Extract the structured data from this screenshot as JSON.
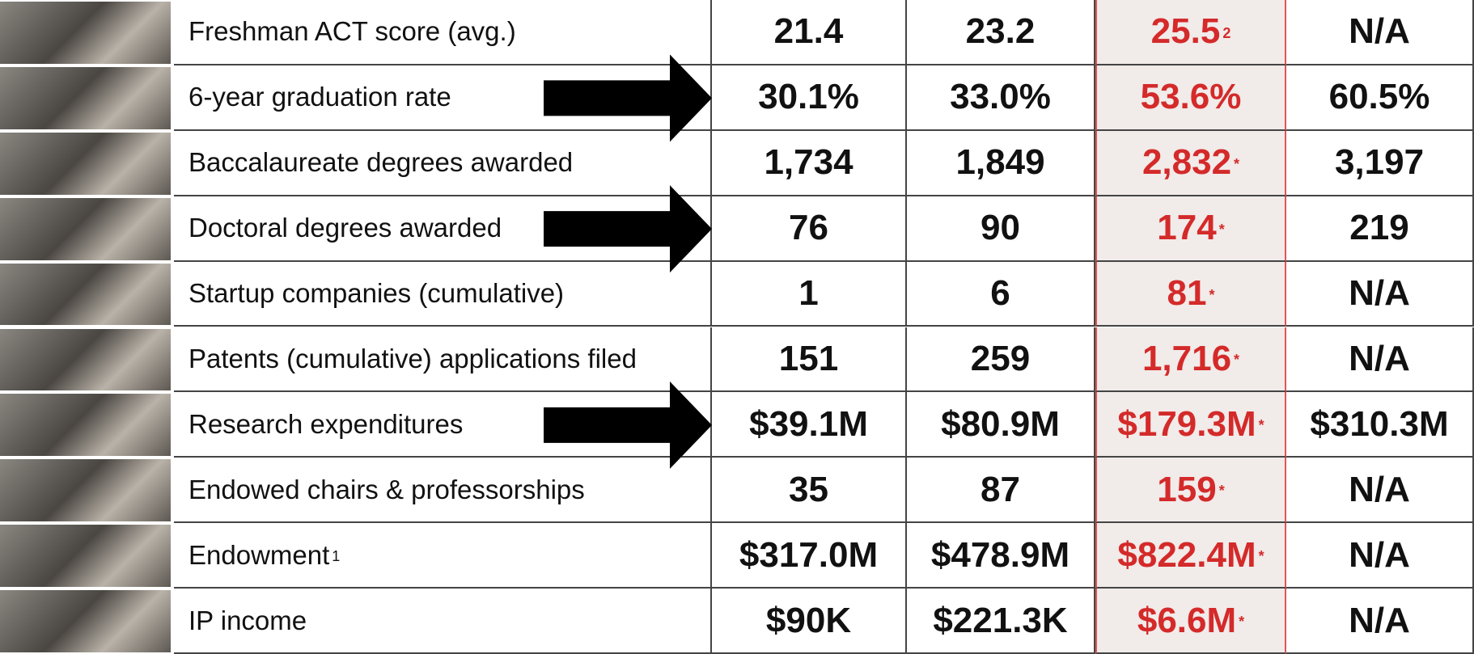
{
  "table": {
    "rows": [
      {
        "label": "Freshman ACT score (avg.)",
        "values": [
          "21.4",
          "23.2",
          "25.5",
          "N/A"
        ],
        "value_note": "2"
      },
      {
        "label": "6-year graduation rate",
        "values": [
          "30.1%",
          "33.0%",
          "53.6%",
          "60.5%"
        ]
      },
      {
        "label": "Baccalaureate degrees awarded",
        "values": [
          "1,734",
          "1,849",
          "2,832",
          "3,197"
        ],
        "value_note": "*"
      },
      {
        "label": "Doctoral degrees awarded",
        "values": [
          "76",
          "90",
          "174",
          "219"
        ],
        "value_note": "*"
      },
      {
        "label": "Startup companies (cumulative)",
        "values": [
          "1",
          "6",
          "81",
          "N/A"
        ],
        "value_note": "*"
      },
      {
        "label": "Patents (cumulative) applications filed",
        "values": [
          "151",
          "259",
          "1,716",
          "N/A"
        ],
        "value_note": "*"
      },
      {
        "label": "Research expenditures",
        "values": [
          "$39.1M",
          "$80.9M",
          "$179.3M",
          "$310.3M"
        ],
        "value_note": "*"
      },
      {
        "label": "Endowed chairs & professorships",
        "values": [
          "35",
          "87",
          "159",
          "N/A"
        ],
        "value_note": "*"
      },
      {
        "label": "Endowment",
        "label_note": "1",
        "values": [
          "$317.0M",
          "$478.9M",
          "$822.4M",
          "N/A"
        ],
        "value_note": "*"
      },
      {
        "label": "IP income",
        "values": [
          "$90K",
          "$221.3K",
          "$6.6M",
          "N/A"
        ],
        "value_note": "*"
      }
    ]
  }
}
